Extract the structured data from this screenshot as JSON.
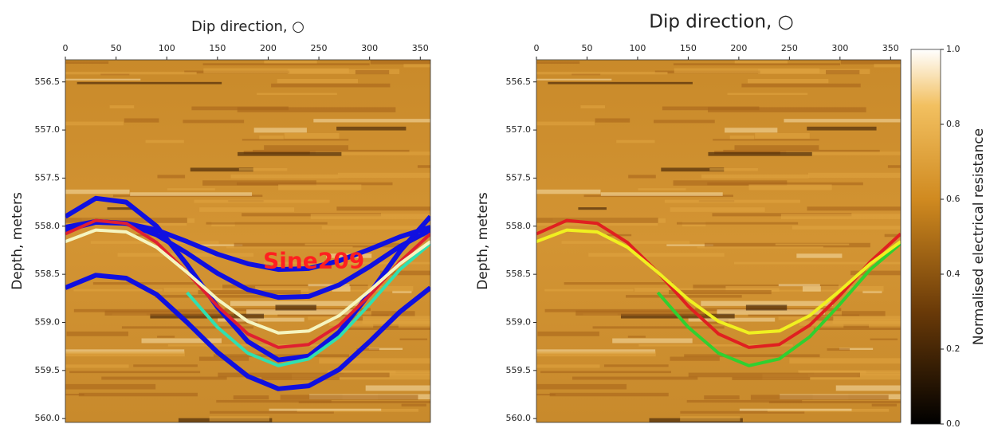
{
  "chart_data": [
    {
      "type": "line",
      "title": "Dip direction, ○",
      "y_label": "Depth, meters",
      "x": [
        0,
        30,
        60,
        90,
        120,
        150,
        180,
        210,
        240,
        270,
        300,
        330,
        360
      ],
      "xlim": [
        0,
        360
      ],
      "xticks": [
        0,
        50,
        100,
        150,
        200,
        250,
        300,
        350
      ],
      "ylim": [
        556.27,
        560.04
      ],
      "yticks": [
        556.5,
        {
          "value": 557,
          "label": "557.0"
        },
        557.5,
        {
          "value": 558,
          "label": "558.0"
        },
        558.5,
        {
          "value": 559,
          "label": "559.0"
        },
        559.5,
        {
          "value": 560,
          "label": "560.0"
        }
      ],
      "y_inverted": true,
      "annotations": [
        "Sine209"
      ],
      "annotation_color": "#ff2020",
      "series": [
        {
          "color": "#1010e0",
          "values": [
            558.04,
            557.96,
            557.97,
            558.09,
            558.28,
            558.49,
            558.66,
            558.74,
            558.73,
            558.61,
            558.42,
            558.21,
            558.04
          ]
        },
        {
          "color": "#1010e0",
          "values": [
            557.9,
            557.71,
            557.75,
            558.0,
            558.4,
            558.84,
            559.2,
            559.39,
            559.35,
            559.1,
            558.7,
            558.26,
            557.9
          ]
        },
        {
          "color": "#1010e0",
          "values": [
            558.01,
            557.95,
            557.97,
            558.04,
            558.16,
            558.29,
            558.39,
            558.45,
            558.44,
            558.36,
            558.24,
            558.11,
            558.01
          ]
        },
        {
          "color": "#1010e0",
          "values": [
            558.64,
            558.51,
            558.54,
            558.71,
            559.0,
            559.31,
            559.56,
            559.69,
            559.66,
            559.49,
            559.2,
            558.89,
            558.64
          ]
        },
        {
          "color": "#30e0b0",
          "values": [
            null,
            null,
            null,
            null,
            558.69,
            559.05,
            559.32,
            559.45,
            559.38,
            559.15,
            558.81,
            558.45,
            558.18
          ]
        },
        {
          "color": "#e02030",
          "values": [
            558.08,
            557.94,
            557.97,
            558.17,
            558.48,
            558.83,
            559.12,
            559.26,
            559.23,
            559.03,
            558.72,
            558.37,
            558.08
          ]
        },
        {
          "color": "#f5f5c0",
          "values": [
            558.16,
            558.04,
            558.06,
            558.22,
            558.48,
            558.76,
            558.99,
            559.11,
            559.09,
            558.93,
            558.67,
            558.39,
            558.16
          ]
        }
      ]
    },
    {
      "type": "line",
      "title": "Dip direction, ○",
      "y_label": "Depth, meters",
      "x": [
        0,
        30,
        60,
        90,
        120,
        150,
        180,
        210,
        240,
        270,
        300,
        330,
        360
      ],
      "xlim": [
        0,
        360
      ],
      "xticks": [
        0,
        50,
        100,
        150,
        200,
        250,
        300,
        350
      ],
      "ylim": [
        556.27,
        560.04
      ],
      "yticks": [
        556.5,
        {
          "value": 557,
          "label": "557.0"
        },
        557.5,
        {
          "value": 558,
          "label": "558.0"
        },
        558.5,
        {
          "value": 559,
          "label": "559.0"
        },
        559.5,
        {
          "value": 560,
          "label": "560.0"
        }
      ],
      "y_inverted": true,
      "series": [
        {
          "color": "#30d030",
          "values": [
            null,
            null,
            null,
            null,
            558.69,
            559.05,
            559.32,
            559.45,
            559.38,
            559.15,
            558.81,
            558.45,
            558.18
          ]
        },
        {
          "color": "#e02020",
          "values": [
            558.08,
            557.94,
            557.97,
            558.17,
            558.48,
            558.83,
            559.12,
            559.26,
            559.23,
            559.03,
            558.72,
            558.37,
            558.08
          ]
        },
        {
          "color": "#f0f020",
          "values": [
            558.16,
            558.04,
            558.06,
            558.22,
            558.48,
            558.76,
            558.99,
            559.11,
            559.09,
            558.93,
            558.67,
            558.39,
            558.16
          ]
        }
      ],
      "colorbar": {
        "label": "Normalised electrical resistance",
        "ylim": [
          0,
          1
        ],
        "yticks": [
          {
            "value": 0,
            "label": "0.0"
          },
          0.2,
          0.4,
          0.6,
          0.8,
          {
            "value": 1,
            "label": "1.0"
          }
        ]
      }
    }
  ]
}
